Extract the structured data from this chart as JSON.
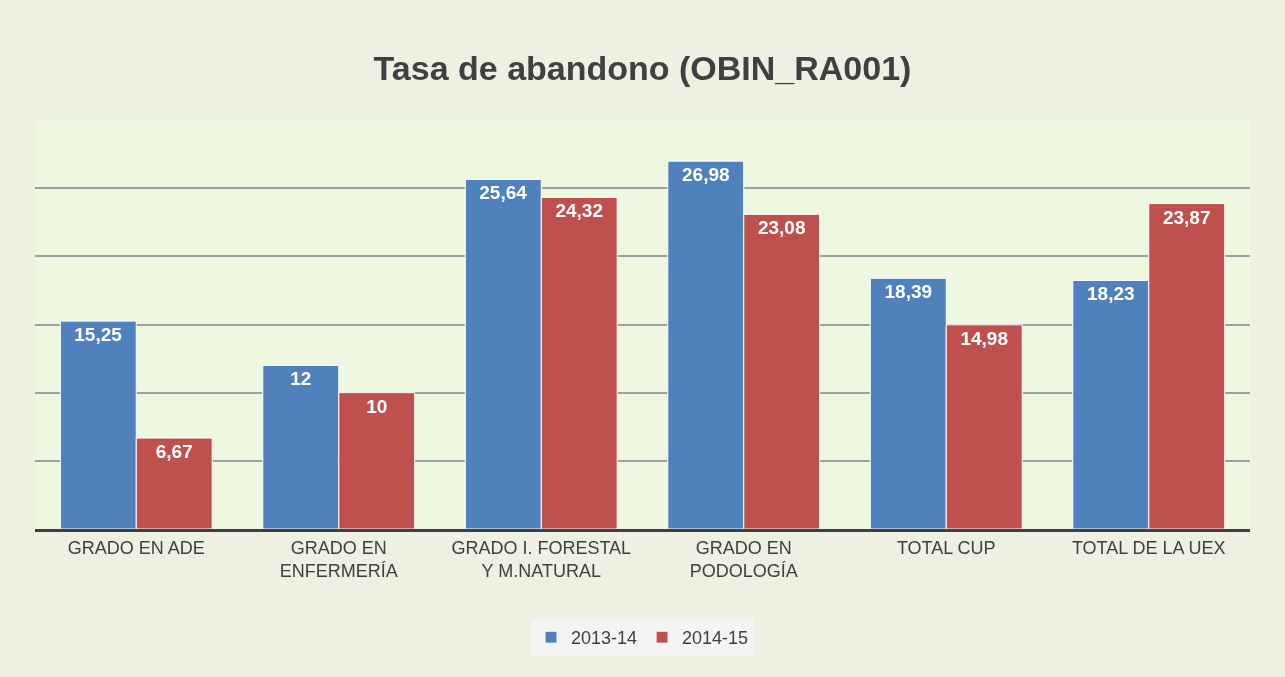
{
  "chart_data": {
    "type": "bar",
    "title": "Tasa de abandono (OBIN_RA001)",
    "categories": [
      "GRADO EN ADE",
      "GRADO EN ENFERMERÍA",
      "GRADO I. FORESTAL Y M.NATURAL",
      "GRADO EN PODOLOGÍA",
      "TOTAL CUP",
      "TOTAL DE LA UEX"
    ],
    "series": [
      {
        "name": "2013-14",
        "color": "#4f81bd",
        "values": [
          15.25,
          12,
          25.64,
          26.98,
          18.39,
          18.23
        ],
        "value_labels": [
          "15,25",
          "12",
          "25,64",
          "26,98",
          "18,39",
          "18,23"
        ]
      },
      {
        "name": "2014-15",
        "color": "#c0504d",
        "values": [
          6.67,
          10,
          24.32,
          23.08,
          14.98,
          23.87
        ],
        "value_labels": [
          "6,67",
          "10",
          "24,32",
          "23,08",
          "14,98",
          "23,87"
        ]
      }
    ],
    "ylim": [
      0,
      30
    ],
    "yticks": [
      {
        "value": 0,
        "label": null
      },
      {
        "value": 5,
        "label": null
      },
      {
        "value": 10,
        "label": null
      },
      {
        "value": 15,
        "label": null
      },
      {
        "value": 20,
        "label": null
      },
      {
        "value": 25,
        "label": null
      },
      {
        "value": 30,
        "label": null
      }
    ],
    "grid": "y",
    "legend": "bottom",
    "tick_labels": "x"
  }
}
